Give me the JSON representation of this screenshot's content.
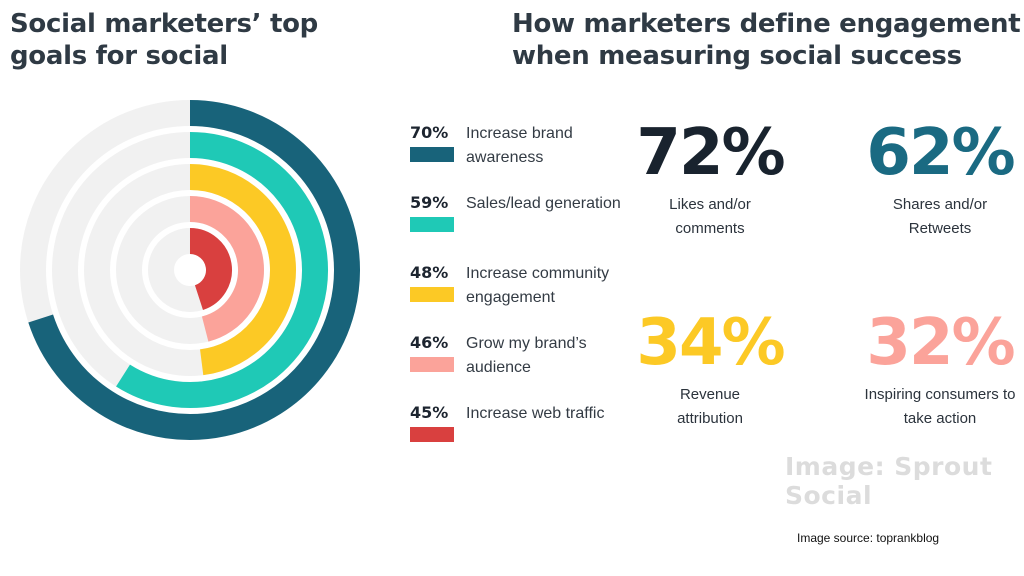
{
  "left_title": "Social marketers’ top goals for social",
  "right_title": "How marketers define engagement when measuring social success",
  "chart_data": [
    {
      "type": "radial bar",
      "title": "Social marketers’ top goals for social",
      "scale_max": 100,
      "series": [
        {
          "label": "Increase brand awareness",
          "value": 70,
          "value_label": "70%",
          "color": "#18637a"
        },
        {
          "label": "Sales/lead generation",
          "value": 59,
          "value_label": "59%",
          "color": "#1fc9b6"
        },
        {
          "label": "Increase community engagement",
          "value": 48,
          "value_label": "48%",
          "color": "#fcc925"
        },
        {
          "label": "Grow my brand’s audience",
          "value": 46,
          "value_label": "46%",
          "color": "#fba39a"
        },
        {
          "label": "Increase web traffic",
          "value": 45,
          "value_label": "45%",
          "color": "#d9403f"
        }
      ],
      "track_color": "#f1f1f1"
    },
    {
      "type": "table",
      "title": "How marketers define engagement when measuring social success",
      "rows": [
        {
          "value": "72%",
          "label": "Likes and/or comments",
          "color": "#19232e"
        },
        {
          "value": "62%",
          "label": "Shares and/or Retweets",
          "color": "#1a6a82"
        },
        {
          "value": "34%",
          "label": "Revenue attribution",
          "color": "#fcc925"
        },
        {
          "value": "32%",
          "label": "Inspiring consumers to take action",
          "color": "#fba39a"
        }
      ]
    }
  ],
  "watermark": "Image: Sprout Social",
  "source": "Image source: toprankblog"
}
